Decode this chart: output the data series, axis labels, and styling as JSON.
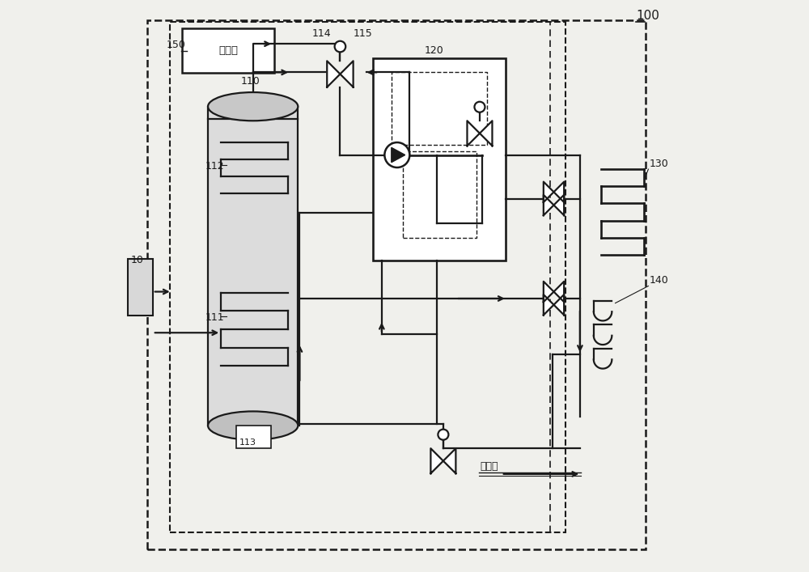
{
  "bg_color": "#f0f0ec",
  "line_color": "#1a1a1a",
  "fig_width": 10.0,
  "fig_height": 7.07,
  "controller_text": "控制器",
  "zhijie_text": "直接水"
}
